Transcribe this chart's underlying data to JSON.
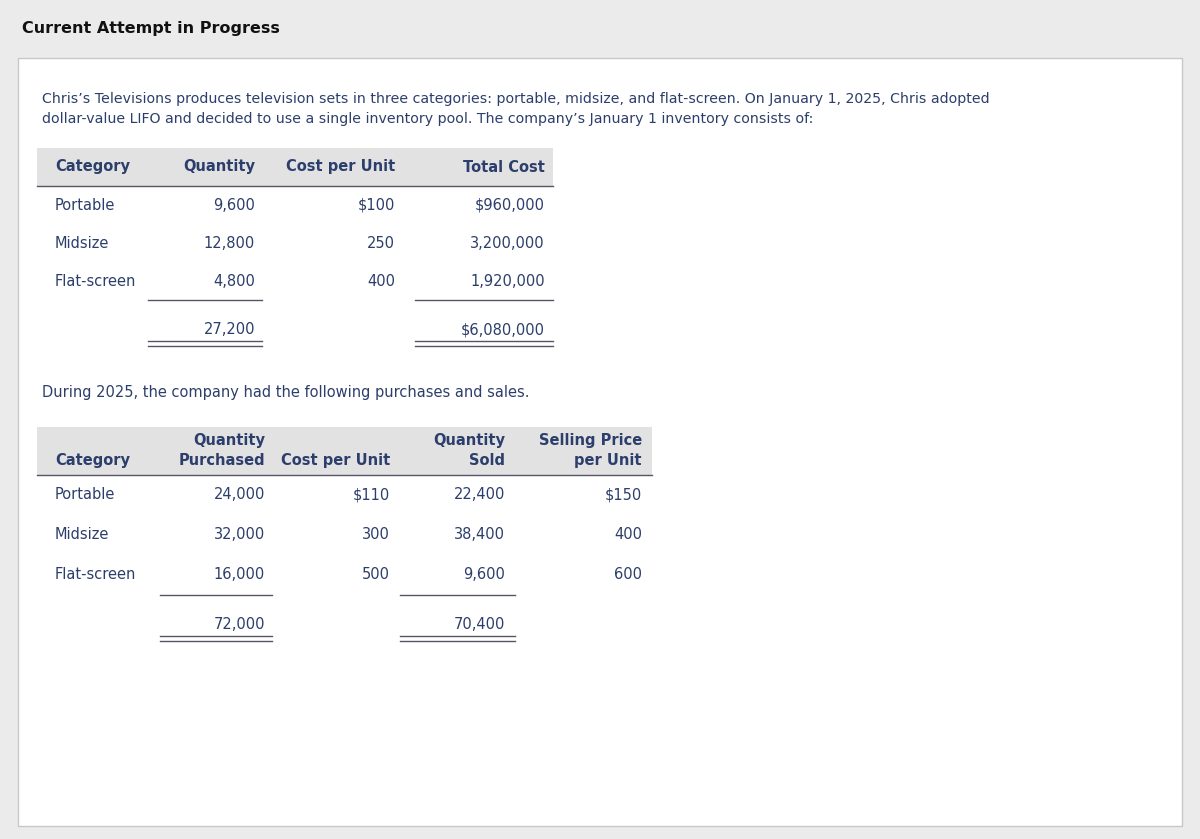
{
  "title": "Current Attempt in Progress",
  "intro_text_line1": "Chris’s Televisions produces television sets in three categories: portable, midsize, and flat-screen. On January 1, 2025, Chris adopted",
  "intro_text_line2": "dollar-value LIFO and decided to use a single inventory pool. The company’s January 1 inventory consists of:",
  "table1_headers": [
    "Category",
    "Quantity",
    "Cost per Unit",
    "Total Cost"
  ],
  "table1_rows": [
    [
      "Portable",
      "9,600",
      "$100",
      "$960,000"
    ],
    [
      "Midsize",
      "12,800",
      "250",
      "3,200,000"
    ],
    [
      "Flat-screen",
      "4,800",
      "400",
      "1,920,000"
    ]
  ],
  "table1_total_qty": "27,200",
  "table1_total_cost": "$6,080,000",
  "mid_text": "During 2025, the company had the following purchases and sales.",
  "table2_headers_line1": [
    "",
    "Quantity",
    "",
    "Quantity",
    "Selling Price"
  ],
  "table2_headers_line2": [
    "Category",
    "Purchased",
    "Cost per Unit",
    "Sold",
    "per Unit"
  ],
  "table2_rows": [
    [
      "Portable",
      "24,000",
      "$110",
      "22,400",
      "$150"
    ],
    [
      "Midsize",
      "32,000",
      "300",
      "38,400",
      "400"
    ],
    [
      "Flat-screen",
      "16,000",
      "500",
      "9,600",
      "600"
    ]
  ],
  "table2_total_qty_purchased": "72,000",
  "table2_total_qty_sold": "70,400",
  "outer_bg": "#ebebeb",
  "card_bg": "#ffffff",
  "header_bg": "#e2e2e2",
  "border_color": "#cccccc",
  "text_color": "#2c3e6b",
  "title_color": "#111111",
  "line_color": "#555566"
}
